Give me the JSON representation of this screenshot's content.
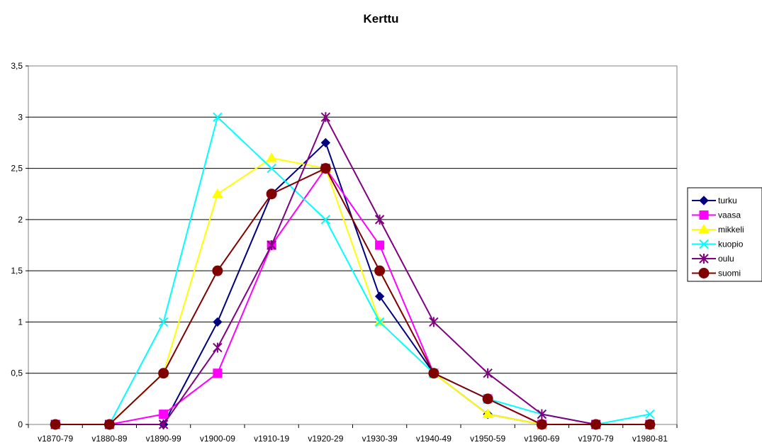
{
  "chart_data": {
    "type": "line",
    "title": "Kerttu",
    "xlabel": "",
    "ylabel": "",
    "categories": [
      "v1870-79",
      "v1880-89",
      "v1890-99",
      "v1900-09",
      "v1910-19",
      "v1920-29",
      "v1930-39",
      "v1940-49",
      "v1950-59",
      "v1960-69",
      "v1970-79",
      "v1980-81"
    ],
    "ylim": [
      0,
      3.5
    ],
    "yticks": [
      "0",
      "0,5",
      "1",
      "1,5",
      "2",
      "2,5",
      "3",
      "3,5"
    ],
    "grid": "horizontal major gridlines",
    "legend_position": "right",
    "series": [
      {
        "name": "turku",
        "color": "#000080",
        "marker": "diamond",
        "values": [
          0,
          0,
          0,
          1,
          2.25,
          2.75,
          1.25,
          0.5,
          0.1,
          0,
          0,
          0
        ]
      },
      {
        "name": "vaasa",
        "color": "#ff00ff",
        "marker": "square",
        "values": [
          0,
          0,
          0.1,
          0.5,
          1.75,
          2.5,
          1.75,
          0.5,
          0.25,
          0,
          0,
          0
        ]
      },
      {
        "name": "mikkeli",
        "color": "#ffff00",
        "marker": "triangle",
        "values": [
          0,
          0,
          0.5,
          2.25,
          2.6,
          2.5,
          1,
          0.5,
          0.1,
          0,
          0,
          0
        ]
      },
      {
        "name": "kuopio",
        "color": "#00ffff",
        "marker": "x",
        "values": [
          0,
          0,
          1,
          3,
          2.5,
          2,
          1,
          0.5,
          0.25,
          0.1,
          0,
          0.1
        ]
      },
      {
        "name": "oulu",
        "color": "#800080",
        "marker": "star",
        "values": [
          0,
          0,
          0,
          0.75,
          1.75,
          3,
          2,
          1,
          0.5,
          0.1,
          0,
          0
        ]
      },
      {
        "name": "suomi",
        "color": "#800000",
        "marker": "circle",
        "values": [
          0,
          0,
          0.5,
          1.5,
          2.25,
          2.5,
          1.5,
          0.5,
          0.25,
          0,
          0,
          0
        ]
      }
    ]
  }
}
